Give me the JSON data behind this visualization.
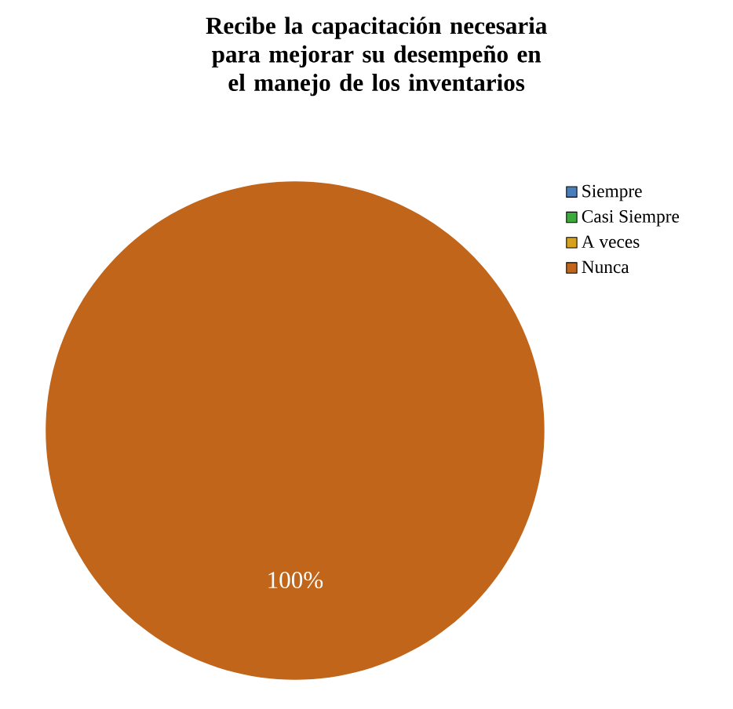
{
  "chart_data": {
    "type": "pie",
    "title": "Recibe la capacitación necesaria para mejorar su desempeño en el manejo de los inventarios",
    "categories": [
      "Siempre",
      "Casi Siempre",
      "A veces",
      "Nunca"
    ],
    "values": [
      0,
      0,
      0,
      100
    ],
    "colors": [
      "#4a7ebb",
      "#3caa3c",
      "#d6a21e",
      "#c0651a"
    ],
    "value_labels": [
      null,
      null,
      null,
      "100%"
    ],
    "legend": "right"
  }
}
